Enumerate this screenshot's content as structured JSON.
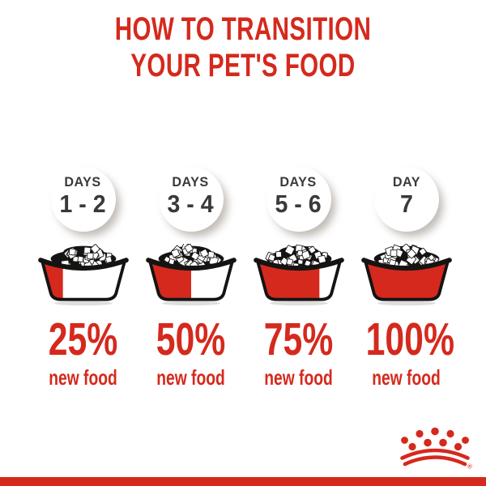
{
  "title": {
    "line1": "HOW TO TRANSITION",
    "line2": "YOUR PET'S FOOD"
  },
  "stages": [
    {
      "day_label": "DAYS",
      "day_range": "1 - 2",
      "percent": "25%",
      "caption": "new food",
      "fill_percent": 25
    },
    {
      "day_label": "DAYS",
      "day_range": "3 - 4",
      "percent": "50%",
      "caption": "new food",
      "fill_percent": 50
    },
    {
      "day_label": "DAYS",
      "day_range": "5 - 6",
      "percent": "75%",
      "caption": "new food",
      "fill_percent": 75
    },
    {
      "day_label": "DAY",
      "day_range": "7",
      "percent": "100%",
      "caption": "new food",
      "fill_percent": 100
    }
  ],
  "brand": {
    "logo": "royal-canin-crown",
    "registered_mark": "®"
  },
  "colors": {
    "accent_red": "#d5291d",
    "text_dark": "#3b3938",
    "outline_black": "#151413"
  }
}
